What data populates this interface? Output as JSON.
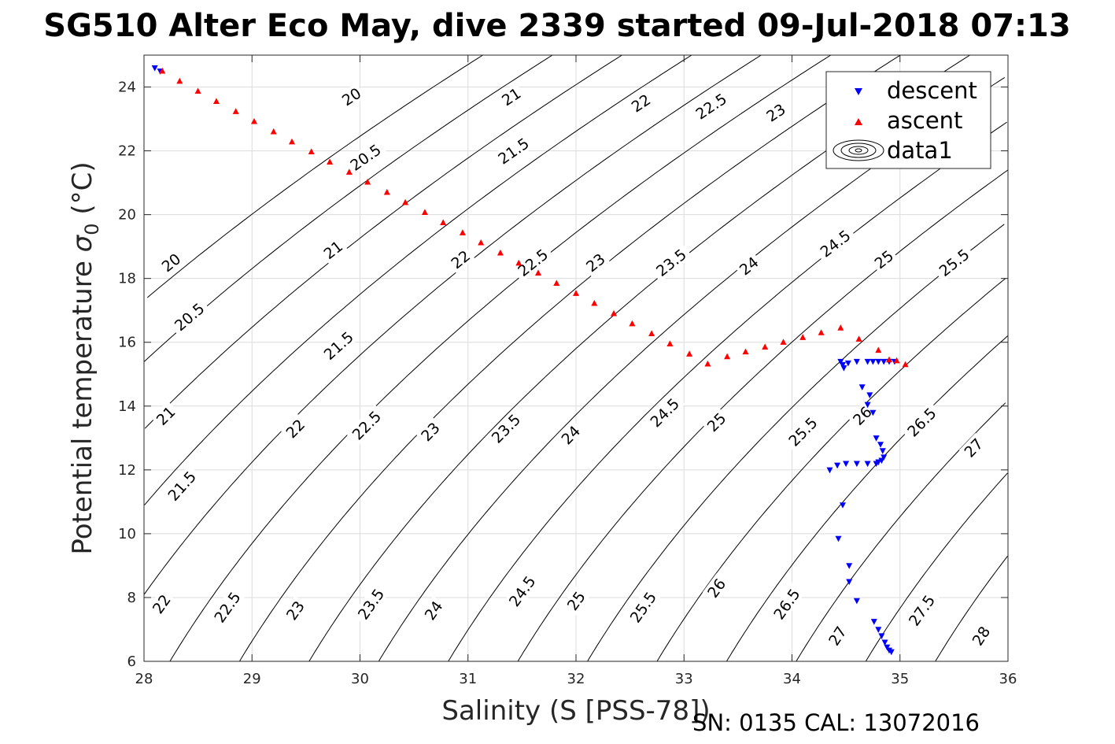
{
  "chart_data": {
    "type": "scatter",
    "title": "SG510 Alter Eco May, dive 2339 started 09-Jul-2018 07:13",
    "xlabel": "Salinity (S [PSS-78])",
    "ylabel_main": "Potential temperature ",
    "ylabel_symbol": "σ",
    "ylabel_sub": "0",
    "ylabel_unit": " (°C)",
    "footer": "SN: 0135  CAL: 13072016",
    "xlim": [
      28,
      36
    ],
    "ylim": [
      6,
      25
    ],
    "xticks": [
      28,
      29,
      30,
      31,
      32,
      33,
      34,
      35,
      36
    ],
    "yticks": [
      6,
      8,
      10,
      12,
      14,
      16,
      18,
      20,
      22,
      24
    ],
    "grid": true,
    "legend_position": "top-right",
    "legend": [
      "descent",
      "ascent",
      "data1"
    ],
    "colors": {
      "descent": "#0000ff",
      "ascent": "#ff0000",
      "contour": "#000000",
      "grid": "#dcdcdc",
      "axis": "#262626"
    },
    "contour_levels": [
      20,
      20.5,
      21,
      21.5,
      22,
      22.5,
      23,
      23.5,
      24,
      24.5,
      25,
      25.5,
      26,
      26.5,
      27,
      27.5,
      28
    ],
    "contour_labels": [
      {
        "text": "20",
        "x": 29.92,
        "y": 23.7
      },
      {
        "text": "21",
        "x": 31.4,
        "y": 23.7
      },
      {
        "text": "22",
        "x": 32.6,
        "y": 23.5
      },
      {
        "text": "22.5",
        "x": 33.25,
        "y": 23.4
      },
      {
        "text": "23",
        "x": 33.85,
        "y": 23.2
      },
      {
        "text": "20.5",
        "x": 30.05,
        "y": 21.8
      },
      {
        "text": "21.5",
        "x": 31.42,
        "y": 22.0
      },
      {
        "text": "20",
        "x": 28.25,
        "y": 18.5
      },
      {
        "text": "21",
        "x": 29.75,
        "y": 18.9
      },
      {
        "text": "22",
        "x": 30.93,
        "y": 18.6
      },
      {
        "text": "22.5",
        "x": 31.6,
        "y": 18.5
      },
      {
        "text": "23",
        "x": 32.18,
        "y": 18.5
      },
      {
        "text": "23.5",
        "x": 32.88,
        "y": 18.5
      },
      {
        "text": "24",
        "x": 33.6,
        "y": 18.4
      },
      {
        "text": "24.5",
        "x": 34.4,
        "y": 19.1
      },
      {
        "text": "25",
        "x": 34.85,
        "y": 18.6
      },
      {
        "text": "25.5",
        "x": 35.5,
        "y": 18.5
      },
      {
        "text": "20.5",
        "x": 28.42,
        "y": 16.8
      },
      {
        "text": "21.5",
        "x": 29.8,
        "y": 15.9
      },
      {
        "text": "21",
        "x": 28.2,
        "y": 13.7
      },
      {
        "text": "22",
        "x": 29.4,
        "y": 13.3
      },
      {
        "text": "22.5",
        "x": 30.06,
        "y": 13.4
      },
      {
        "text": "23",
        "x": 30.65,
        "y": 13.2
      },
      {
        "text": "23.5",
        "x": 31.35,
        "y": 13.3
      },
      {
        "text": "24",
        "x": 31.95,
        "y": 13.1
      },
      {
        "text": "24.5",
        "x": 32.82,
        "y": 13.8
      },
      {
        "text": "25",
        "x": 33.3,
        "y": 13.5
      },
      {
        "text": "25.5",
        "x": 34.1,
        "y": 13.2
      },
      {
        "text": "26",
        "x": 34.65,
        "y": 13.7
      },
      {
        "text": "26.5",
        "x": 35.2,
        "y": 13.5
      },
      {
        "text": "27",
        "x": 35.68,
        "y": 12.7
      },
      {
        "text": "21.5",
        "x": 28.35,
        "y": 11.5
      },
      {
        "text": "22",
        "x": 28.16,
        "y": 7.8
      },
      {
        "text": "22.5",
        "x": 28.77,
        "y": 7.7
      },
      {
        "text": "23",
        "x": 29.4,
        "y": 7.6
      },
      {
        "text": "23.5",
        "x": 30.1,
        "y": 7.8
      },
      {
        "text": "24",
        "x": 30.68,
        "y": 7.6
      },
      {
        "text": "24.5",
        "x": 31.5,
        "y": 8.2
      },
      {
        "text": "25",
        "x": 32.0,
        "y": 7.9
      },
      {
        "text": "25.5",
        "x": 32.62,
        "y": 7.7
      },
      {
        "text": "26",
        "x": 33.3,
        "y": 8.3
      },
      {
        "text": "26.5",
        "x": 33.95,
        "y": 7.8
      },
      {
        "text": "27",
        "x": 34.42,
        "y": 6.8
      },
      {
        "text": "27.5",
        "x": 35.2,
        "y": 7.6
      },
      {
        "text": "28",
        "x": 35.75,
        "y": 6.8
      }
    ],
    "series": [
      {
        "name": "descent",
        "marker": "triangle-down",
        "x": [
          28.1,
          28.15,
          34.45,
          34.48,
          34.52,
          34.6,
          34.7,
          34.75,
          34.8,
          34.85,
          34.9,
          34.95,
          34.47,
          34.65,
          34.72,
          34.7,
          34.75,
          34.78,
          34.82,
          34.84,
          34.85,
          34.83,
          34.8,
          34.78,
          34.7,
          34.6,
          34.5,
          34.42,
          34.35,
          34.47,
          34.43,
          34.53,
          34.53,
          34.6,
          34.76,
          34.8,
          34.83,
          34.86,
          34.88,
          34.9,
          34.92
        ],
        "y": [
          24.6,
          24.5,
          15.4,
          15.2,
          15.35,
          15.4,
          15.4,
          15.4,
          15.4,
          15.4,
          15.4,
          15.4,
          15.3,
          14.6,
          14.35,
          14.05,
          13.8,
          13.0,
          12.8,
          12.6,
          12.4,
          12.3,
          12.25,
          12.2,
          12.2,
          12.2,
          12.2,
          12.15,
          12.0,
          10.9,
          9.85,
          9.0,
          8.5,
          7.9,
          7.25,
          7.0,
          6.8,
          6.6,
          6.45,
          6.35,
          6.3
        ]
      },
      {
        "name": "ascent",
        "marker": "triangle-up",
        "x": [
          28.17,
          28.33,
          28.5,
          28.67,
          28.85,
          29.02,
          29.2,
          29.37,
          29.55,
          29.72,
          29.9,
          30.07,
          30.25,
          30.42,
          30.6,
          30.77,
          30.95,
          31.12,
          31.3,
          31.47,
          31.65,
          31.82,
          32.0,
          32.17,
          32.35,
          32.52,
          32.7,
          32.87,
          33.05,
          33.22,
          33.4,
          33.57,
          33.75,
          33.92,
          34.1,
          34.27,
          34.45,
          34.62,
          34.8,
          34.9,
          34.97,
          35.05
        ],
        "y": [
          24.5,
          24.18,
          23.87,
          23.55,
          23.23,
          22.92,
          22.6,
          22.28,
          21.97,
          21.65,
          21.33,
          21.02,
          20.7,
          20.38,
          20.07,
          19.75,
          19.43,
          19.12,
          18.8,
          18.48,
          18.17,
          17.85,
          17.53,
          17.22,
          16.9,
          16.58,
          16.27,
          15.95,
          15.63,
          15.32,
          15.55,
          15.7,
          15.85,
          16.0,
          16.15,
          16.3,
          16.45,
          16.1,
          15.75,
          15.45,
          15.42,
          15.3
        ]
      }
    ]
  }
}
